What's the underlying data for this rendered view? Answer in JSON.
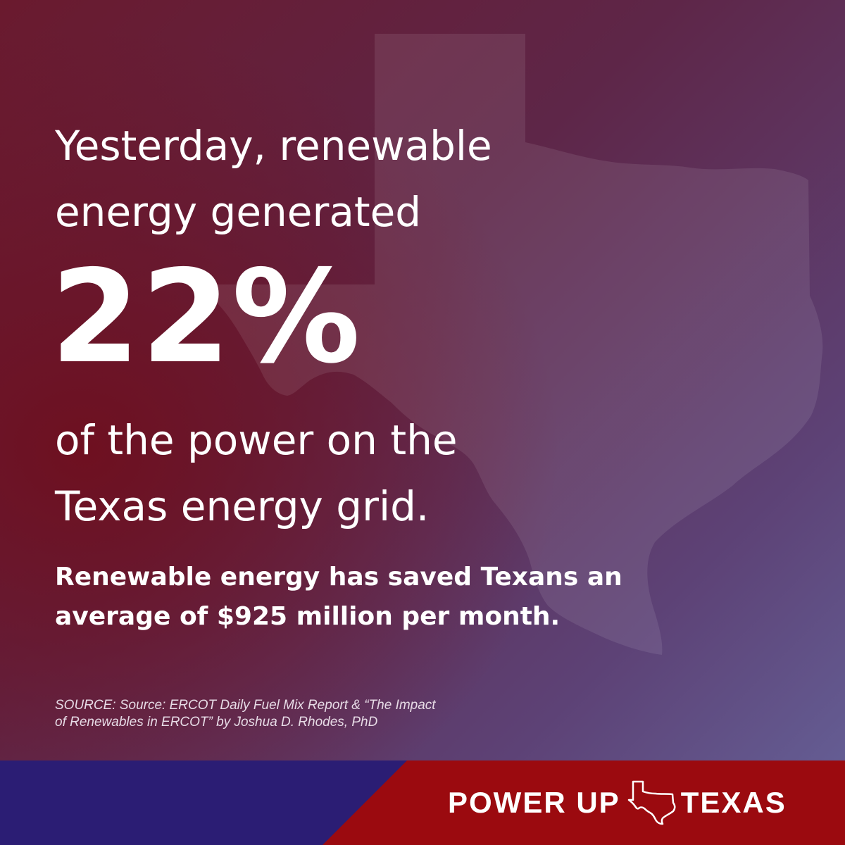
{
  "headline": {
    "line1": "Yesterday, renewable",
    "line2": "energy generated"
  },
  "statistic": {
    "value": "22%"
  },
  "subline": {
    "line1": "of the power on the",
    "line2": "Texas energy grid."
  },
  "savings": {
    "line1": "Renewable energy has saved Texans an",
    "line2": "average of $925 million per month."
  },
  "source": {
    "line1": "SOURCE: Source: ERCOT Daily Fuel Mix Report & “The Impact",
    "line2": "of Renewables in ERCOT” by Joshua D. Rhodes, PhD"
  },
  "logo": {
    "left_text": "POWER UP",
    "right_text": "TEXAS"
  },
  "colors": {
    "footer_red": "#9b0a0f",
    "footer_blue": "#2b1d74",
    "text": "#ffffff"
  }
}
